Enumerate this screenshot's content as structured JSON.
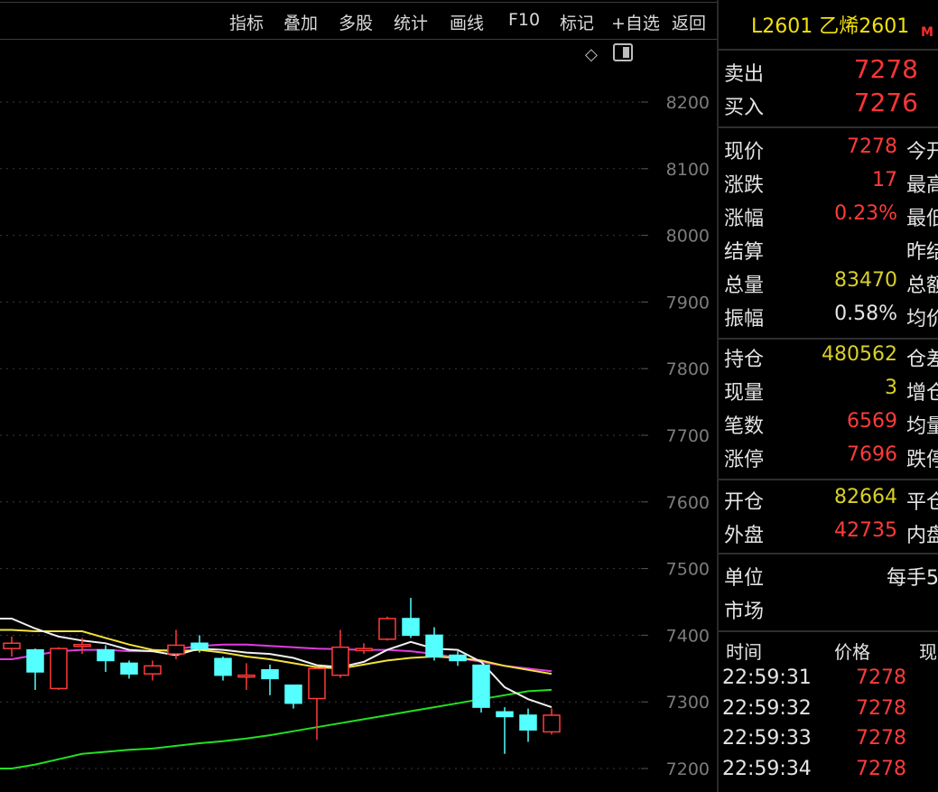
{
  "toolbar": {
    "items": [
      "指标",
      "叠加",
      "多股",
      "统计",
      "画线",
      "F10",
      "标记",
      "+自选",
      "返回"
    ]
  },
  "chart_data": {
    "type": "candlestick",
    "y_ticks": [
      8200,
      8100,
      8000,
      7900,
      7800,
      7700,
      7600,
      7500,
      7400,
      7300,
      7200
    ],
    "ylim": [
      7173,
      8270
    ],
    "grid": true,
    "candles": [
      {
        "o": 7380,
        "c": 7388,
        "h": 7398,
        "l": 7368
      },
      {
        "o": 7378,
        "c": 7345,
        "h": 7380,
        "l": 7318
      },
      {
        "o": 7320,
        "c": 7380,
        "h": 7382,
        "l": 7318
      },
      {
        "o": 7384,
        "c": 7386,
        "h": 7396,
        "l": 7372
      },
      {
        "o": 7378,
        "c": 7362,
        "h": 7385,
        "l": 7345
      },
      {
        "o": 7358,
        "c": 7342,
        "h": 7362,
        "l": 7335
      },
      {
        "o": 7342,
        "c": 7354,
        "h": 7362,
        "l": 7332
      },
      {
        "o": 7372,
        "c": 7385,
        "h": 7408,
        "l": 7364
      },
      {
        "o": 7388,
        "c": 7380,
        "h": 7400,
        "l": 7374
      },
      {
        "o": 7365,
        "c": 7340,
        "h": 7368,
        "l": 7332
      },
      {
        "o": 7338,
        "c": 7340,
        "h": 7358,
        "l": 7318
      },
      {
        "o": 7348,
        "c": 7335,
        "h": 7356,
        "l": 7310
      },
      {
        "o": 7325,
        "c": 7298,
        "h": 7325,
        "l": 7290
      },
      {
        "o": 7305,
        "c": 7350,
        "h": 7352,
        "l": 7243
      },
      {
        "o": 7340,
        "c": 7382,
        "h": 7408,
        "l": 7336
      },
      {
        "o": 7377,
        "c": 7380,
        "h": 7388,
        "l": 7372
      },
      {
        "o": 7394,
        "c": 7425,
        "h": 7428,
        "l": 7392
      },
      {
        "o": 7425,
        "c": 7400,
        "h": 7456,
        "l": 7396
      },
      {
        "o": 7400,
        "c": 7368,
        "h": 7412,
        "l": 7362
      },
      {
        "o": 7370,
        "c": 7362,
        "h": 7376,
        "l": 7354
      },
      {
        "o": 7355,
        "c": 7292,
        "h": 7356,
        "l": 7284
      },
      {
        "o": 7285,
        "c": 7278,
        "h": 7292,
        "l": 7222
      },
      {
        "o": 7280,
        "c": 7258,
        "h": 7290,
        "l": 7240
      },
      {
        "o": 7255,
        "c": 7280,
        "h": 7290,
        "l": 7251
      }
    ],
    "ma_white": [
      7425,
      7410,
      7398,
      7392,
      7388,
      7378,
      7376,
      7370,
      7380,
      7378,
      7374,
      7372,
      7366,
      7355,
      7352,
      7360,
      7378,
      7390,
      7380,
      7378,
      7360,
      7322,
      7304,
      7292
    ],
    "ma_yellow": [
      7408,
      7406,
      7406,
      7406,
      7396,
      7386,
      7378,
      7376,
      7378,
      7374,
      7368,
      7364,
      7358,
      7352,
      7350,
      7356,
      7362,
      7366,
      7368,
      7366,
      7362,
      7354,
      7348,
      7342
    ],
    "ma_magenta": [
      7364,
      7370,
      7376,
      7378,
      7378,
      7376,
      7376,
      7379,
      7384,
      7386,
      7386,
      7384,
      7382,
      7380,
      7379,
      7378,
      7378,
      7376,
      7372,
      7366,
      7360,
      7354,
      7350,
      7346
    ],
    "ma_green": [
      7200,
      7206,
      7214,
      7222,
      7225,
      7228,
      7230,
      7234,
      7238,
      7241,
      7245,
      7250,
      7256,
      7262,
      7268,
      7274,
      7280,
      7286,
      7292,
      7298,
      7304,
      7310,
      7316,
      7318
    ]
  },
  "panel": {
    "title": "L2601 乙烯2601",
    "badge": "M",
    "sell_label": "卖出",
    "sell_value": "7278",
    "buy_label": "买入",
    "buy_value": "7276",
    "quote_rows": [
      {
        "label": "现价",
        "value": "7278",
        "color": "red",
        "label2": "今开"
      },
      {
        "label": "涨跌",
        "value": "17",
        "color": "red",
        "label2": "最高"
      },
      {
        "label": "涨幅",
        "value": "0.23%",
        "color": "red",
        "label2": "最低"
      },
      {
        "label": "结算",
        "value": "",
        "color": "white",
        "label2": "昨结"
      },
      {
        "label": "总量",
        "value": "83470",
        "color": "yellow",
        "label2": "总额"
      },
      {
        "label": "振幅",
        "value": "0.58%",
        "color": "white",
        "label2": "均价"
      }
    ],
    "pos_rows": [
      {
        "label": "持仓",
        "value": "480562",
        "color": "yellow",
        "label2": "仓差"
      },
      {
        "label": "现量",
        "value": "3",
        "color": "yellow",
        "label2": "增仓"
      },
      {
        "label": "笔数",
        "value": "6569",
        "color": "red",
        "label2": "均量"
      },
      {
        "label": "涨停",
        "value": "7696",
        "color": "red",
        "label2": "跌停"
      }
    ],
    "oc_rows": [
      {
        "label": "开仓",
        "value": "82664",
        "color": "yellow",
        "label2": "平仓"
      },
      {
        "label": "外盘",
        "value": "42735",
        "color": "red",
        "label2": "内盘"
      }
    ],
    "unit_label": "单位",
    "unit_value": "每手5",
    "market_label": "市场",
    "ticks_header": {
      "time": "时间",
      "price": "价格",
      "vol": "现"
    },
    "ticks": [
      {
        "time": "22:59:31",
        "price": "7278"
      },
      {
        "time": "22:59:32",
        "price": "7278"
      },
      {
        "time": "22:59:33",
        "price": "7278"
      },
      {
        "time": "22:59:34",
        "price": "7278"
      }
    ]
  }
}
